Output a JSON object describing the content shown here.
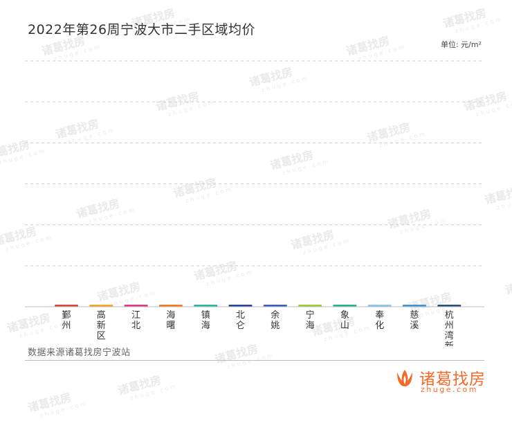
{
  "chart_data": {
    "type": "bar",
    "title": "2022年第26周宁波大市二手区域均价",
    "unit_label": "单位: 元/m²",
    "categories": [
      "鄞州",
      "高新区",
      "江北",
      "海曙",
      "镇海",
      "北仑",
      "余姚",
      "宁海",
      "象山",
      "奉化",
      "慈溪",
      "杭州湾新区"
    ],
    "values": [
      0,
      0,
      0,
      0,
      0,
      0,
      0,
      0,
      0,
      0,
      0,
      0
    ],
    "colors": [
      "#e8413c",
      "#f5a623",
      "#e0398a",
      "#f07c2a",
      "#2bb5a7",
      "#27429a",
      "#3a5fb8",
      "#9ccc3a",
      "#26b38c",
      "#8ec6e8",
      "#3f93d4",
      "#2f4f73"
    ],
    "ylim": [
      0,
      100
    ],
    "gridlines": 6,
    "grid": true,
    "legend": "none"
  },
  "source": "数据来源诸葛找房宁波站",
  "logo": {
    "name": "诸葛找房",
    "domain": "zhuge.com"
  },
  "watermark": {
    "name": "诸葛找房",
    "domain": "zhuge.com"
  }
}
